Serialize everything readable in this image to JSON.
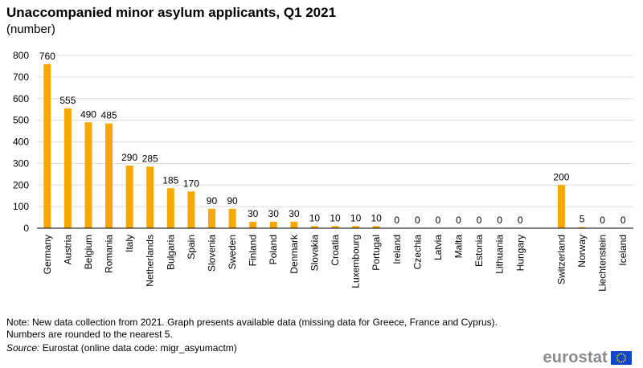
{
  "title": "Unaccompanied minor asylum applicants, Q1 2021",
  "subtitle": "(number)",
  "note_line1": "Note: New data collection from 2021. Graph presents available data (missing data for Greece, France and Cyprus).",
  "note_line2": "Numbers are rounded to the nearest 5.",
  "source_label": "Source:",
  "source_text": " Eurostat (online data code: migr_asyumactm)",
  "logo_text": "eurostat",
  "colors": {
    "bar": "#f6a800",
    "grid": "#dddddd",
    "axis": "#000000"
  },
  "chart_data": {
    "type": "bar",
    "title": "Unaccompanied minor asylum applicants, Q1 2021",
    "ylabel": "",
    "xlabel": "",
    "ylim": [
      0,
      800
    ],
    "yticks": [
      0,
      100,
      200,
      300,
      400,
      500,
      600,
      700,
      800
    ],
    "grid": true,
    "legend": "none",
    "categories": [
      "Germany",
      "Austria",
      "Belgium",
      "Romania",
      "Italy",
      "Netherlands",
      "Bulgaria",
      "Spain",
      "Slovenia",
      "Sweden",
      "Finland",
      "Poland",
      "Denmark",
      "Slovakia",
      "Croatia",
      "Luxembourg",
      "Portugal",
      "Ireland",
      "Czechia",
      "Latvia",
      "Malta",
      "Estonia",
      "Lithuania",
      "Hungary",
      "",
      "Switzerland",
      "Norway",
      "Liechtenstein",
      "Iceland"
    ],
    "values": [
      760,
      555,
      490,
      485,
      290,
      285,
      185,
      170,
      90,
      90,
      30,
      30,
      30,
      10,
      10,
      10,
      10,
      0,
      0,
      0,
      0,
      0,
      0,
      0,
      null,
      200,
      5,
      0,
      0
    ],
    "labels": [
      "760",
      "555",
      "490",
      "485",
      "290",
      "285",
      "185",
      "170",
      "90",
      "90",
      "30",
      "30",
      "30",
      "10",
      "10",
      "10",
      "10",
      "0",
      "0",
      "0",
      "0",
      "0",
      "0",
      "0",
      "",
      "200",
      "5",
      "0",
      "0"
    ]
  }
}
